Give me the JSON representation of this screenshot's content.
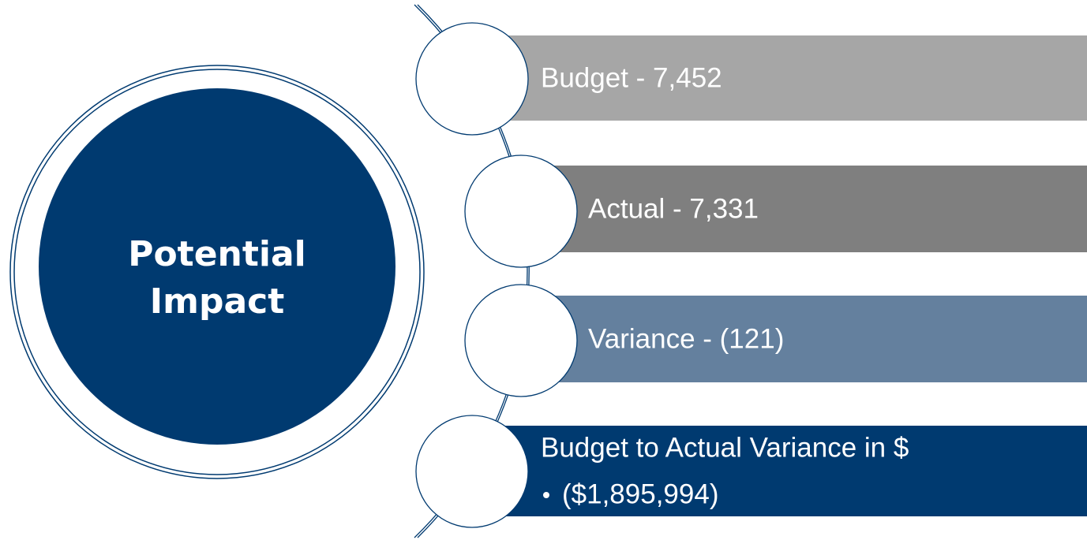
{
  "center": {
    "title_lines": [
      "Potential",
      "Impact"
    ]
  },
  "items": [
    {
      "label": "Budget - 7,452"
    },
    {
      "label": "Actual - 7,331"
    },
    {
      "label": "Variance - (121)"
    },
    {
      "label": "Budget to Actual Variance in $",
      "bullets": [
        "($1,895,994)"
      ]
    }
  ]
}
